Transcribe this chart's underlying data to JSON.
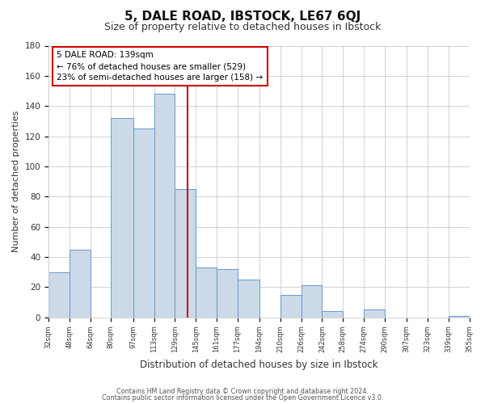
{
  "title": "5, DALE ROAD, IBSTOCK, LE67 6QJ",
  "subtitle": "Size of property relative to detached houses in Ibstock",
  "xlabel": "Distribution of detached houses by size in Ibstock",
  "ylabel": "Number of detached properties",
  "bin_edges": [
    32,
    48,
    64,
    80,
    97,
    113,
    129,
    145,
    161,
    177,
    194,
    210,
    226,
    242,
    258,
    274,
    290,
    307,
    323,
    339,
    355
  ],
  "bar_heights": [
    30,
    45,
    0,
    132,
    125,
    148,
    85,
    33,
    32,
    25,
    0,
    15,
    21,
    4,
    0,
    5,
    0,
    0,
    0,
    1
  ],
  "bar_color": "#ccd9e8",
  "bar_edge_color": "#6699cc",
  "vline_x": 139,
  "vline_color": "#cc0000",
  "annotation_title": "5 DALE ROAD: 139sqm",
  "annotation_line1": "← 76% of detached houses are smaller (529)",
  "annotation_line2": "23% of semi-detached houses are larger (158) →",
  "annotation_box_color": "#ffffff",
  "annotation_box_edge_color": "#cc0000",
  "ylim": [
    0,
    180
  ],
  "yticks": [
    0,
    20,
    40,
    60,
    80,
    100,
    120,
    140,
    160,
    180
  ],
  "footer1": "Contains HM Land Registry data © Crown copyright and database right 2024.",
  "footer2": "Contains public sector information licensed under the Open Government Licence v3.0.",
  "bg_color": "#ffffff",
  "grid_color": "#cccccc",
  "title_fontsize": 11,
  "subtitle_fontsize": 9
}
